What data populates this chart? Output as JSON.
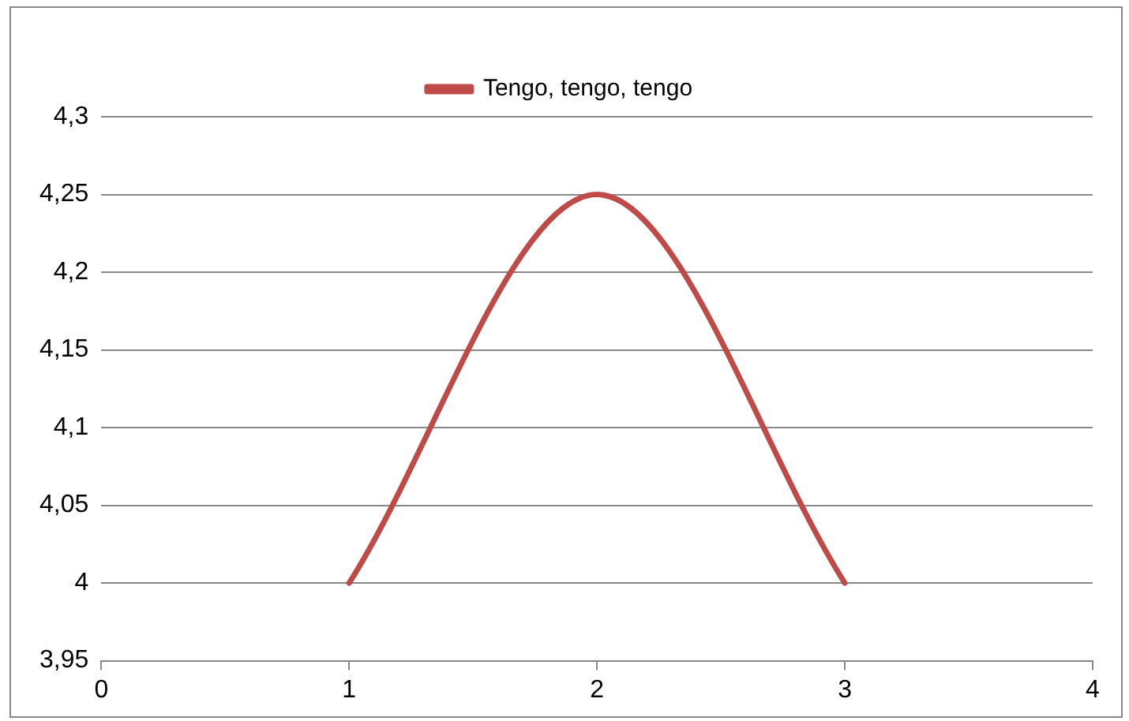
{
  "chart_data": {
    "type": "line",
    "x": [
      1,
      2,
      3
    ],
    "series": [
      {
        "name": "Tengo, tengo, tengo",
        "color": "#be4b48",
        "values": [
          4,
          4.25,
          4
        ]
      }
    ],
    "xlim": [
      0,
      4
    ],
    "xticks": [
      0,
      1,
      2,
      3,
      4
    ],
    "ylim": [
      3.95,
      4.3
    ],
    "yticks": [
      {
        "value": 3.95,
        "label": "3,95"
      },
      {
        "value": 4,
        "label": "4"
      },
      {
        "value": 4.05,
        "label": "4,05"
      },
      {
        "value": 4.1,
        "label": "4,1"
      },
      {
        "value": 4.15,
        "label": "4,15"
      },
      {
        "value": 4.2,
        "label": "4,2"
      },
      {
        "value": 4.25,
        "label": "4,25"
      },
      {
        "value": 4.3,
        "label": "4,3"
      }
    ],
    "grid": "y",
    "legend": "top",
    "marker": "none",
    "line_style": "solid"
  }
}
